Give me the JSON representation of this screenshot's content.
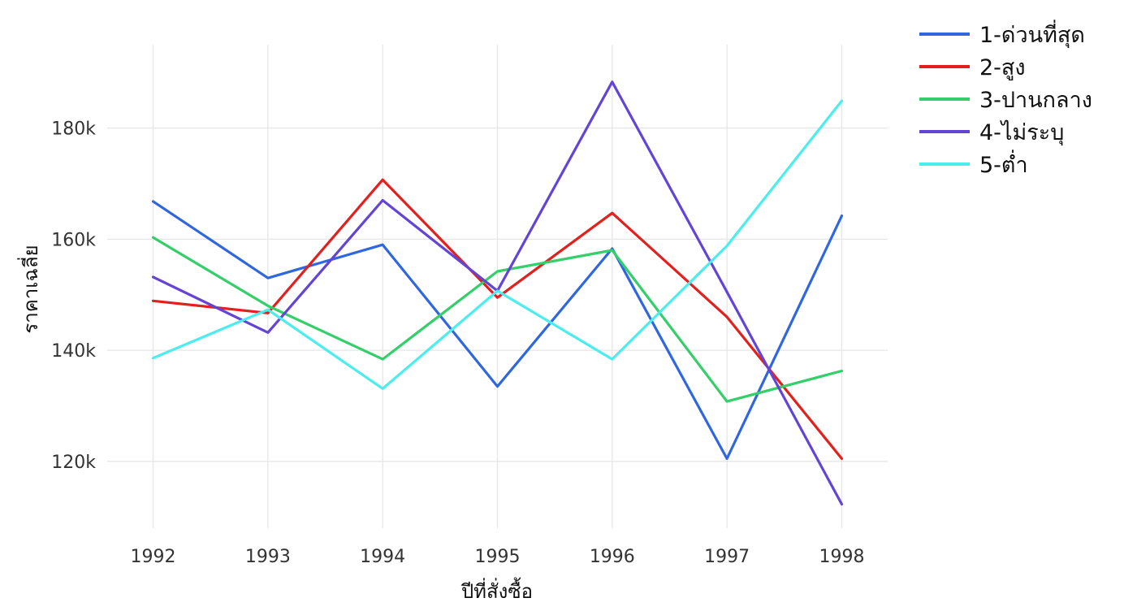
{
  "chart_data": {
    "type": "line",
    "title": "",
    "xlabel": "ปีที่สั่งซื้อ",
    "ylabel": "ราคาเฉลี่ย",
    "x": [
      1992,
      1993,
      1994,
      1995,
      1996,
      1997,
      1998
    ],
    "xlim": [
      1991.6,
      1998.4
    ],
    "ylim": [
      108000,
      195000
    ],
    "yticks": [
      120000,
      140000,
      160000,
      180000
    ],
    "ytick_labels": [
      "120k",
      "140k",
      "160k",
      "180k"
    ],
    "xtick_labels": [
      "1992",
      "1993",
      "1994",
      "1995",
      "1996",
      "1997",
      "1998"
    ],
    "grid": true,
    "legend_position": "top-right",
    "series": [
      {
        "name": "1-ด่วนที่สุด",
        "color": "#2F67E0",
        "values": [
          166800,
          153000,
          159000,
          133500,
          158300,
          120500,
          164200
        ]
      },
      {
        "name": "2-สูง",
        "color": "#E0211E",
        "values": [
          148900,
          146700,
          170700,
          149500,
          164700,
          146000,
          120500
        ]
      },
      {
        "name": "3-ปานกลาง",
        "color": "#34CF6A",
        "values": [
          160300,
          148000,
          138400,
          154200,
          158000,
          130800,
          136300
        ]
      },
      {
        "name": "4-ไม่ระบุ",
        "color": "#6244D6",
        "values": [
          153200,
          143200,
          167000,
          150700,
          188300,
          150500,
          112300
        ]
      },
      {
        "name": "5-ต่ำ",
        "color": "#4BEDED",
        "values": [
          138600,
          147300,
          133100,
          150700,
          138400,
          158800,
          184900
        ]
      }
    ]
  }
}
